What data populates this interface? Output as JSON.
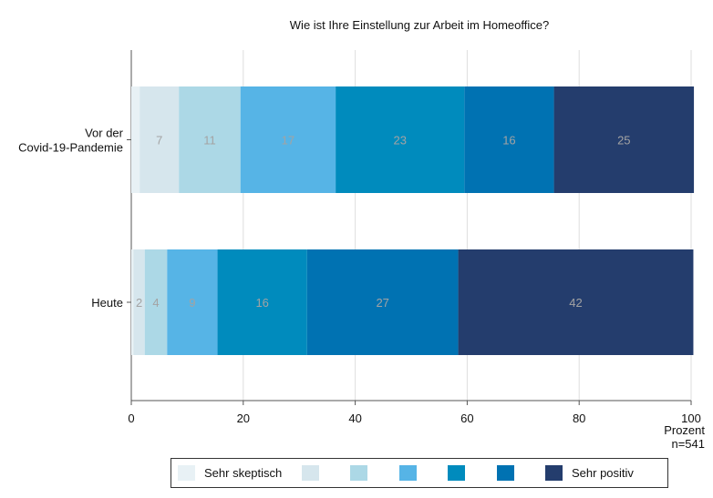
{
  "chart_data": {
    "type": "bar",
    "orientation": "horizontal",
    "stacked": true,
    "title": "Wie ist Ihre Einstellung zur Arbeit im Homeoffice?",
    "xlabel": "Prozent",
    "note": "n=541",
    "xlim": [
      0,
      100
    ],
    "xticks": [
      0,
      20,
      40,
      60,
      80,
      100
    ],
    "grid": true,
    "categories": [
      [
        "Vor der",
        "Covid-19-Pandemie"
      ],
      [
        "Heute"
      ]
    ],
    "series": [
      {
        "name": "Sehr skeptisch",
        "color": "#e8f1f5",
        "values": [
          1.5,
          0.4
        ],
        "labels": [
          "",
          ""
        ]
      },
      {
        "name": "",
        "color": "#d6e6ed",
        "values": [
          7,
          2
        ],
        "labels": [
          "7",
          "2"
        ]
      },
      {
        "name": "",
        "color": "#acd8e6",
        "values": [
          11,
          4
        ],
        "labels": [
          "11",
          "4"
        ]
      },
      {
        "name": "",
        "color": "#56b4e6",
        "values": [
          17,
          9
        ],
        "labels": [
          "17",
          "9"
        ]
      },
      {
        "name": "",
        "color": "#008bbd",
        "values": [
          23,
          16
        ],
        "labels": [
          "23",
          "16"
        ]
      },
      {
        "name": "",
        "color": "#0072b2",
        "values": [
          16,
          27
        ],
        "labels": [
          "16",
          "27"
        ]
      },
      {
        "name": "Sehr positiv",
        "color": "#243d6d",
        "values": [
          25,
          42
        ],
        "labels": [
          "25",
          "42"
        ]
      }
    ],
    "legend_placement": "bottom",
    "data_label_color": "#a3a3a3"
  }
}
